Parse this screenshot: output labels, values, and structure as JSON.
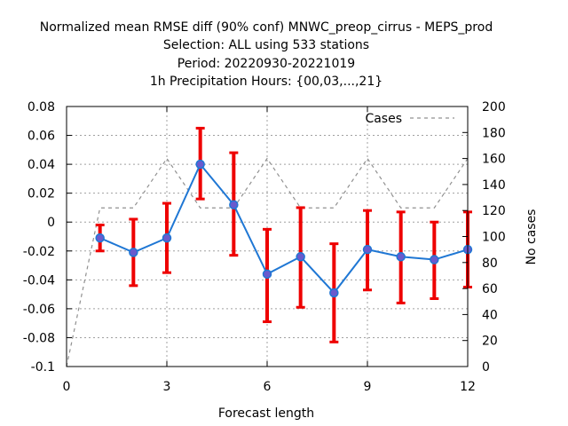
{
  "chart_data": {
    "type": "line",
    "title_lines": [
      "Normalized mean RMSE diff (90% conf) MNWC_preop_cirrus - MEPS_prod",
      "Selection: ALL using   533 stations",
      "Period: 20220930-20221019",
      "1h Precipitation   Hours: {00,03,...,21}"
    ],
    "xlabel": "Forecast length",
    "ylabel_right": "No cases",
    "xlim": [
      0,
      12
    ],
    "ylim": [
      -0.1,
      0.08
    ],
    "y2lim": [
      0,
      200
    ],
    "x_ticks": [
      0,
      3,
      6,
      9,
      12
    ],
    "x_tick_labels": [
      "0",
      "3",
      "6",
      "9",
      "12"
    ],
    "y_ticks": [
      -0.1,
      -0.08,
      -0.06,
      -0.04,
      -0.02,
      0,
      0.02,
      0.04,
      0.06,
      0.08
    ],
    "y_tick_labels": [
      "-0.1",
      "-0.08",
      "-0.06",
      "-0.04",
      "-0.02",
      "0",
      "0.02",
      "0.04",
      "0.06",
      "0.08"
    ],
    "y2_ticks": [
      0,
      20,
      40,
      60,
      80,
      100,
      120,
      140,
      160,
      180,
      200
    ],
    "y2_tick_labels": [
      "0",
      "20",
      "40",
      "60",
      "80",
      "100",
      "120",
      "140",
      "160",
      "180",
      "200"
    ],
    "grid": true,
    "legend": {
      "label": "Cases",
      "position": "top-right"
    },
    "series": [
      {
        "name": "Normalized mean RMSE diff",
        "color": "#1f77d4",
        "marker_color": "#6a5acd",
        "x": [
          1,
          2,
          3,
          4,
          5,
          6,
          7,
          8,
          9,
          10,
          11,
          12
        ],
        "values": [
          -0.011,
          -0.021,
          -0.011,
          0.04,
          0.012,
          -0.036,
          -0.024,
          -0.049,
          -0.019,
          -0.024,
          -0.026,
          -0.019
        ],
        "ci_low": [
          -0.02,
          -0.044,
          -0.035,
          0.016,
          -0.023,
          -0.069,
          -0.059,
          -0.083,
          -0.047,
          -0.056,
          -0.053,
          -0.045
        ],
        "ci_high": [
          -0.002,
          0.002,
          0.013,
          0.065,
          0.048,
          -0.005,
          0.01,
          -0.015,
          0.008,
          0.007,
          0.0,
          0.007
        ],
        "errorbar_color": "#ee0000"
      },
      {
        "name": "Cases",
        "axis": "right",
        "color": "#909090",
        "dashed": true,
        "x": [
          0,
          1,
          2,
          3,
          4,
          5,
          6,
          7,
          8,
          9,
          10,
          11,
          12
        ],
        "values": [
          0,
          122,
          122,
          160,
          122,
          122,
          160,
          122,
          122,
          160,
          122,
          122,
          160
        ]
      }
    ]
  }
}
